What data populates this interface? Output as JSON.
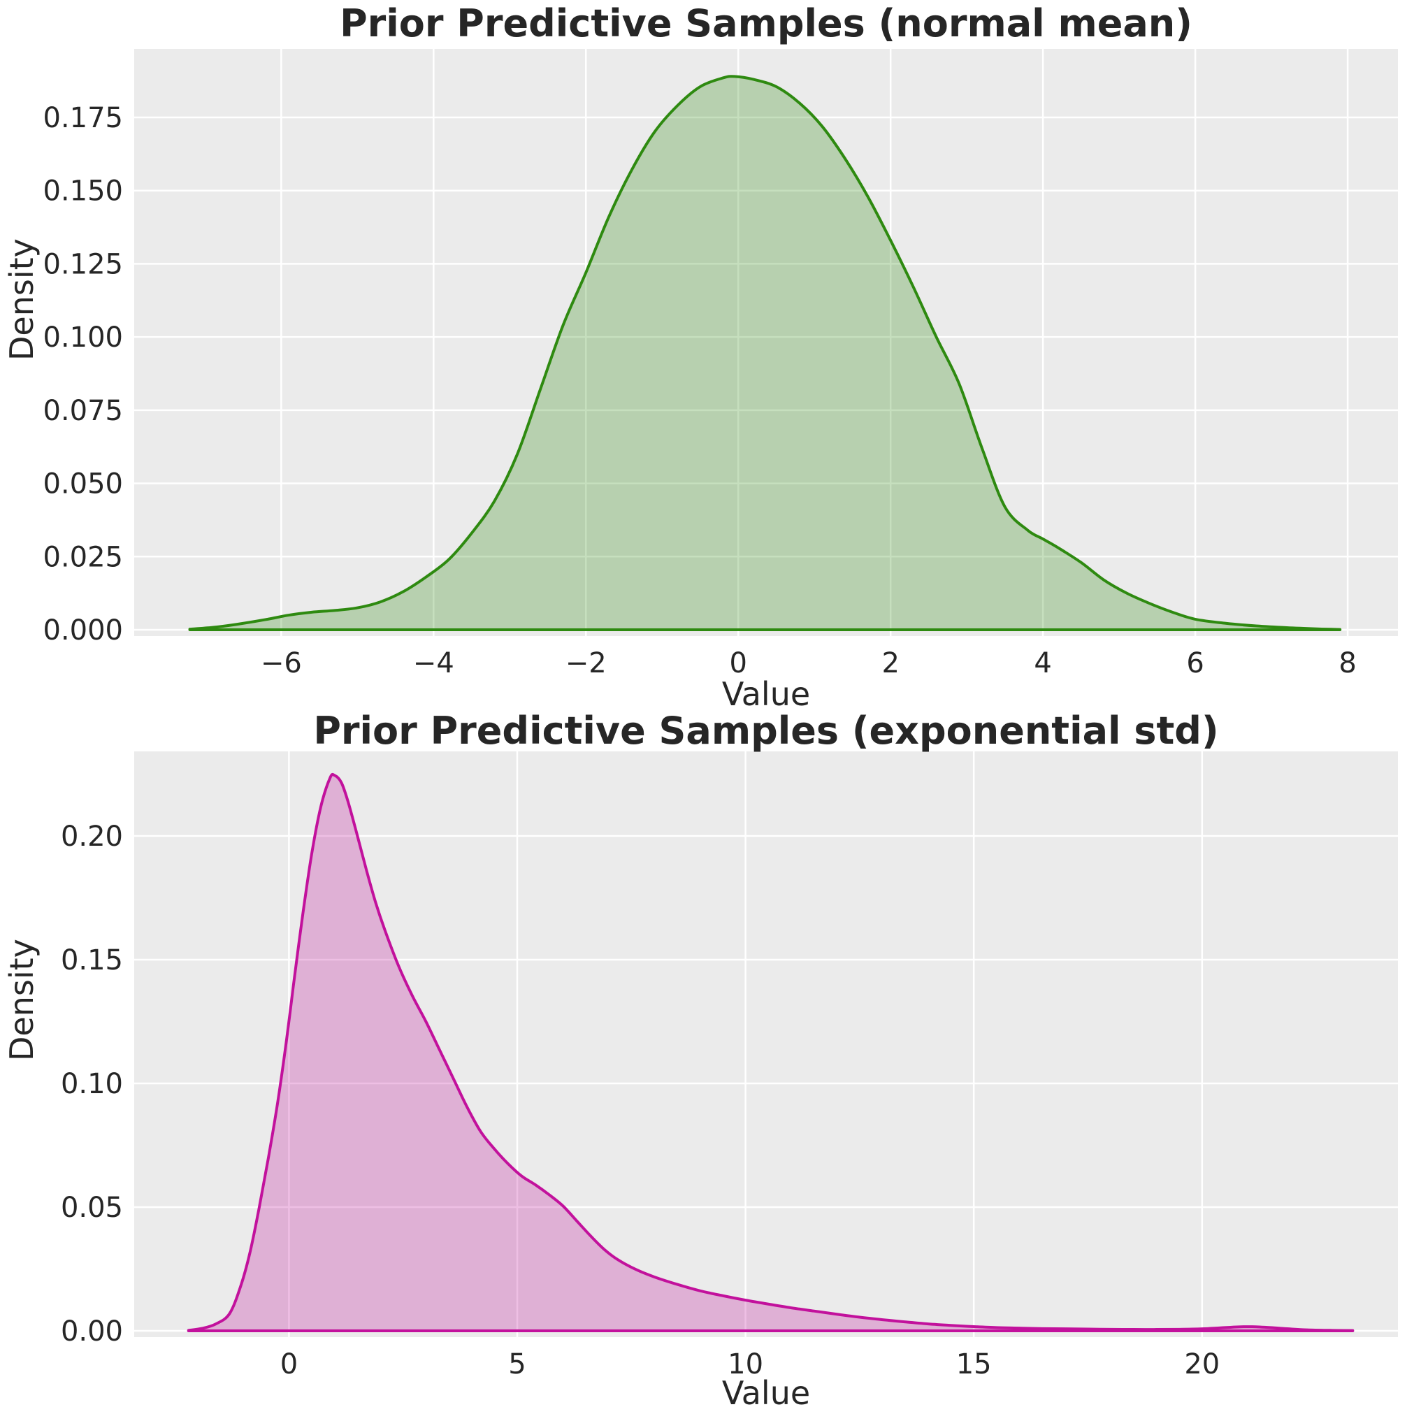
{
  "figure": {
    "background": "#ffffff",
    "text_color": "#262626"
  },
  "chart_data": [
    {
      "type": "area",
      "kind": "kde-density",
      "title": "Prior Predictive Samples (normal mean)",
      "xlabel": "Value",
      "ylabel": "Density",
      "legend": "none",
      "grid": true,
      "axes_bg": "#ebebeb",
      "grid_color": "#ffffff",
      "line_color": "#2e8a10",
      "fill_opacity": 0.27,
      "xlim": [
        -7.93,
        8.66
      ],
      "ylim": [
        -0.00215,
        0.1984
      ],
      "xticks": [
        {
          "v": -6,
          "label": "−6"
        },
        {
          "v": -4,
          "label": "−4"
        },
        {
          "v": -2,
          "label": "−2"
        },
        {
          "v": 0,
          "label": "0"
        },
        {
          "v": 2,
          "label": "2"
        },
        {
          "v": 4,
          "label": "4"
        },
        {
          "v": 6,
          "label": "6"
        },
        {
          "v": 8,
          "label": "8"
        }
      ],
      "yticks": [
        {
          "v": 0.0,
          "label": "0.000"
        },
        {
          "v": 0.025,
          "label": "0.025"
        },
        {
          "v": 0.05,
          "label": "0.050"
        },
        {
          "v": 0.075,
          "label": "0.075"
        },
        {
          "v": 0.1,
          "label": "0.100"
        },
        {
          "v": 0.125,
          "label": "0.125"
        },
        {
          "v": 0.15,
          "label": "0.150"
        },
        {
          "v": 0.175,
          "label": "0.175"
        }
      ],
      "points": [
        [
          -7.2,
          0.0002
        ],
        [
          -6.9,
          0.0008
        ],
        [
          -6.6,
          0.0018
        ],
        [
          -6.2,
          0.0035
        ],
        [
          -5.9,
          0.005
        ],
        [
          -5.6,
          0.006
        ],
        [
          -5.3,
          0.0066
        ],
        [
          -5.0,
          0.0075
        ],
        [
          -4.7,
          0.0095
        ],
        [
          -4.4,
          0.013
        ],
        [
          -4.1,
          0.018
        ],
        [
          -3.8,
          0.024
        ],
        [
          -3.5,
          0.033
        ],
        [
          -3.2,
          0.044
        ],
        [
          -2.9,
          0.06
        ],
        [
          -2.6,
          0.082
        ],
        [
          -2.3,
          0.104
        ],
        [
          -2.0,
          0.122
        ],
        [
          -1.7,
          0.141
        ],
        [
          -1.4,
          0.157
        ],
        [
          -1.1,
          0.17
        ],
        [
          -0.8,
          0.179
        ],
        [
          -0.5,
          0.1855
        ],
        [
          -0.2,
          0.1885
        ],
        [
          -0.05,
          0.189
        ],
        [
          0.2,
          0.188
        ],
        [
          0.5,
          0.1855
        ],
        [
          0.8,
          0.18
        ],
        [
          1.1,
          0.172
        ],
        [
          1.4,
          0.161
        ],
        [
          1.7,
          0.148
        ],
        [
          2.0,
          0.133
        ],
        [
          2.3,
          0.117
        ],
        [
          2.6,
          0.1
        ],
        [
          2.9,
          0.084
        ],
        [
          3.2,
          0.062
        ],
        [
          3.5,
          0.042
        ],
        [
          3.8,
          0.034
        ],
        [
          4.0,
          0.031
        ],
        [
          4.2,
          0.028
        ],
        [
          4.5,
          0.023
        ],
        [
          4.8,
          0.017
        ],
        [
          5.1,
          0.0125
        ],
        [
          5.4,
          0.009
        ],
        [
          5.7,
          0.006
        ],
        [
          6.0,
          0.0036
        ],
        [
          6.4,
          0.0022
        ],
        [
          6.8,
          0.0013
        ],
        [
          7.2,
          0.0007
        ],
        [
          7.6,
          0.0003
        ],
        [
          7.9,
          0.0001
        ]
      ]
    },
    {
      "type": "area",
      "kind": "kde-density",
      "title": "Prior Predictive Samples (exponential std)",
      "xlabel": "Value",
      "ylabel": "Density",
      "legend": "none",
      "grid": true,
      "axes_bg": "#ebebeb",
      "grid_color": "#ffffff",
      "line_color": "#c2119c",
      "fill_opacity": 0.27,
      "xlim": [
        -3.39,
        24.29
      ],
      "ylim": [
        -0.00254,
        0.2342
      ],
      "xticks": [
        {
          "v": 0,
          "label": "0"
        },
        {
          "v": 5,
          "label": "5"
        },
        {
          "v": 10,
          "label": "10"
        },
        {
          "v": 15,
          "label": "15"
        },
        {
          "v": 20,
          "label": "20"
        }
      ],
      "yticks": [
        {
          "v": 0.0,
          "label": "0.00"
        },
        {
          "v": 0.05,
          "label": "0.05"
        },
        {
          "v": 0.1,
          "label": "0.10"
        },
        {
          "v": 0.15,
          "label": "0.15"
        },
        {
          "v": 0.2,
          "label": "0.20"
        }
      ],
      "points": [
        [
          -2.2,
          0.0002
        ],
        [
          -1.9,
          0.001
        ],
        [
          -1.6,
          0.0028
        ],
        [
          -1.3,
          0.007
        ],
        [
          -1.05,
          0.0185
        ],
        [
          -0.85,
          0.032
        ],
        [
          -0.65,
          0.05
        ],
        [
          -0.45,
          0.07
        ],
        [
          -0.25,
          0.092
        ],
        [
          -0.05,
          0.118
        ],
        [
          0.1,
          0.14
        ],
        [
          0.3,
          0.168
        ],
        [
          0.5,
          0.193
        ],
        [
          0.7,
          0.212
        ],
        [
          0.9,
          0.2235
        ],
        [
          1.0,
          0.2245
        ],
        [
          1.15,
          0.2215
        ],
        [
          1.3,
          0.2135
        ],
        [
          1.5,
          0.2
        ],
        [
          1.7,
          0.186
        ],
        [
          1.9,
          0.173
        ],
        [
          2.1,
          0.162
        ],
        [
          2.4,
          0.1475
        ],
        [
          2.7,
          0.1355
        ],
        [
          3.0,
          0.125
        ],
        [
          3.3,
          0.1135
        ],
        [
          3.6,
          0.102
        ],
        [
          3.9,
          0.0905
        ],
        [
          4.2,
          0.0805
        ],
        [
          4.5,
          0.0735
        ],
        [
          4.8,
          0.0675
        ],
        [
          5.1,
          0.0625
        ],
        [
          5.4,
          0.059
        ],
        [
          5.7,
          0.055
        ],
        [
          6.0,
          0.0505
        ],
        [
          6.3,
          0.0445
        ],
        [
          6.6,
          0.0385
        ],
        [
          6.9,
          0.033
        ],
        [
          7.2,
          0.0288
        ],
        [
          7.6,
          0.0248
        ],
        [
          8.0,
          0.0218
        ],
        [
          8.5,
          0.0188
        ],
        [
          9.0,
          0.0162
        ],
        [
          9.5,
          0.0142
        ],
        [
          10.0,
          0.0124
        ],
        [
          10.5,
          0.0108
        ],
        [
          11.0,
          0.0093
        ],
        [
          11.5,
          0.008
        ],
        [
          12.0,
          0.0067
        ],
        [
          12.5,
          0.0055
        ],
        [
          13.0,
          0.0045
        ],
        [
          13.5,
          0.0036
        ],
        [
          14.0,
          0.0028
        ],
        [
          14.5,
          0.0022
        ],
        [
          15.0,
          0.0017
        ],
        [
          15.5,
          0.0013
        ],
        [
          16.0,
          0.0011
        ],
        [
          16.5,
          0.0009
        ],
        [
          17.0,
          0.0008
        ],
        [
          17.5,
          0.0007
        ],
        [
          18.0,
          0.0006
        ],
        [
          18.5,
          0.00055
        ],
        [
          19.0,
          0.00055
        ],
        [
          19.5,
          0.0006
        ],
        [
          20.0,
          0.0008
        ],
        [
          20.4,
          0.0012
        ],
        [
          20.8,
          0.0016
        ],
        [
          21.1,
          0.00165
        ],
        [
          21.5,
          0.0013
        ],
        [
          21.9,
          0.0008
        ],
        [
          22.3,
          0.0004
        ],
        [
          22.8,
          0.0002
        ],
        [
          23.3,
          0.0001
        ]
      ]
    }
  ]
}
